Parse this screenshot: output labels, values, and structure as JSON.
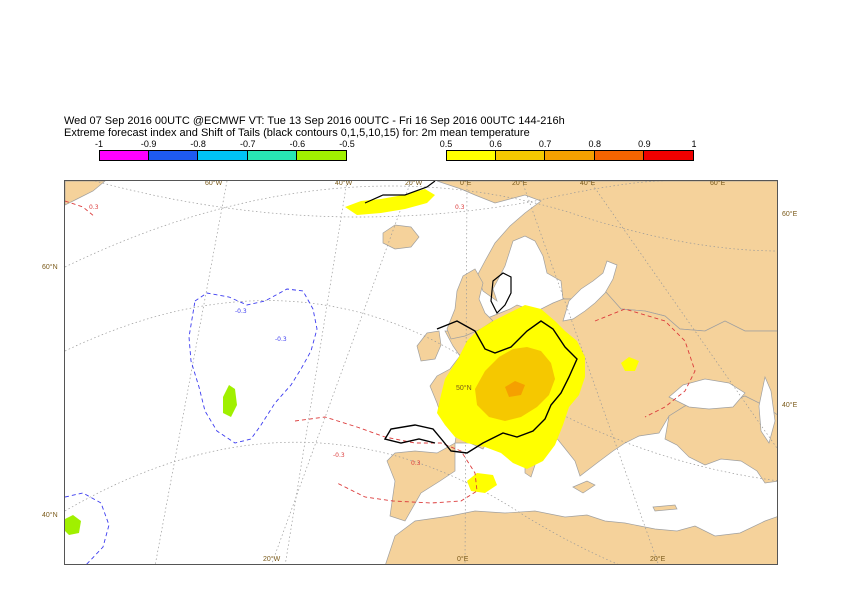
{
  "header": {
    "line1": "Wed 07 Sep 2016 00UTC @ECMWF VT: Tue 13 Sep 2016 00UTC - Fri 16 Sep 2016 00UTC  144-216h",
    "line2": "Extreme forecast index and Shift of Tails (black contours 0,1,5,10,15) for: 2m mean temperature"
  },
  "legend_negative": {
    "ticks": [
      "-1",
      "-0.9",
      "-0.8",
      "-0.7",
      "-0.6",
      "-0.5"
    ],
    "colors": [
      "#ff00ff",
      "#1e5af0",
      "#00c3f5",
      "#28e6b4",
      "#a0f000"
    ]
  },
  "legend_positive": {
    "ticks": [
      "0.5",
      "0.6",
      "0.7",
      "0.8",
      "0.9",
      "1"
    ],
    "colors": [
      "#ffff00",
      "#f5c800",
      "#f5a000",
      "#f56400",
      "#f00000"
    ]
  },
  "map": {
    "colors": {
      "land": "#f5d29b",
      "sea": "#ffffff",
      "coast": "#a0a0a0",
      "grid": "#999999",
      "neg_contour": "#3c3cf0",
      "pos_contour": "#dc3c3c",
      "sot_contour": "#000000"
    },
    "top_labels": [
      "60°W",
      "40°W",
      "20°W",
      "0°E",
      "20°E",
      "40°E",
      "60°E"
    ],
    "bottom_labels": [
      "20°W",
      "0°E",
      "20°E"
    ],
    "left_labels": [
      "60°N",
      "40°N"
    ],
    "right_labels": [
      "60°E",
      "40°E"
    ],
    "inner_label": "50°N",
    "contour_labels": [
      "-0.3",
      "-0.3",
      "0.3",
      "0.3",
      "-0.3",
      "0.3"
    ]
  }
}
